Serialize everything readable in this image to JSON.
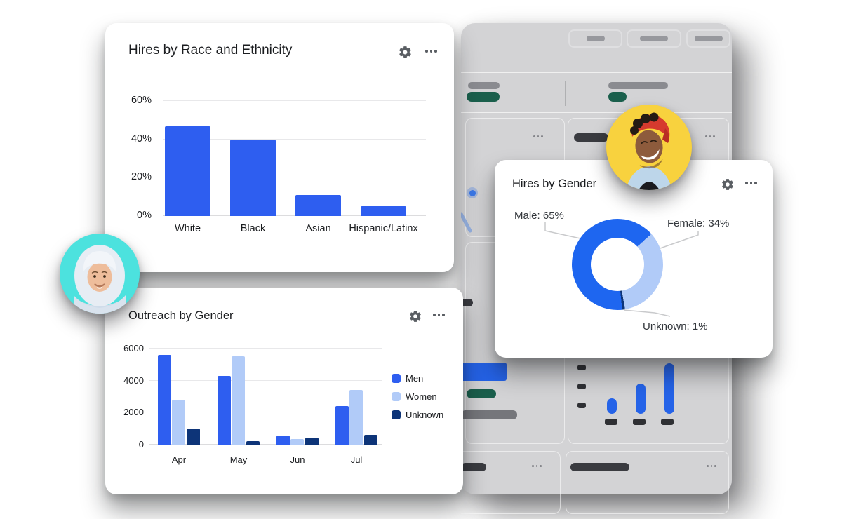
{
  "cards": {
    "race": {
      "title": "Hires by Race and Ethnicity"
    },
    "gender": {
      "title": "Hires by Gender"
    },
    "outreach": {
      "title": "Outreach by Gender"
    }
  },
  "icons": {
    "settings": "gear-icon",
    "more": "ellipsis-horizontal-icon"
  },
  "colors": {
    "primary_blue": "#2e5ef0",
    "donut_male_blue": "#1e66f0",
    "light_blue": "#b1cbf8",
    "navy": "#0d3478",
    "green_badge": "#1a5f4c",
    "panel_gray": "#d3d3d5",
    "card_white": "#ffffff"
  },
  "avatars": [
    {
      "name": "woman-hijab-avatar",
      "bg": "#4ce2de"
    },
    {
      "name": "man-beanie-avatar",
      "bg": "#f8d23e"
    }
  ],
  "chart_data": [
    {
      "name": "hires_by_race",
      "type": "bar",
      "title": "Hires by Race and Ethnicity",
      "categories": [
        "White",
        "Black",
        "Asian",
        "Hispanic/Latinx"
      ],
      "values": [
        47,
        40,
        11,
        5
      ],
      "unit": "%",
      "ylim": [
        0,
        60
      ],
      "yticks": [
        0,
        20,
        40,
        60
      ],
      "ytick_labels": [
        "0%",
        "20%",
        "40%",
        "60%"
      ],
      "bar_color": "#2e5ef0",
      "grid": true,
      "legend": null
    },
    {
      "name": "hires_by_gender",
      "type": "donut",
      "title": "Hires by Gender",
      "slices": [
        {
          "label": "Male",
          "value": 65,
          "color": "#1e66f0",
          "label_text": "Male: 65%"
        },
        {
          "label": "Female",
          "value": 34,
          "color": "#b1cbf8",
          "label_text": "Female: 34%"
        },
        {
          "label": "Unknown",
          "value": 1,
          "color": "#0d3478",
          "label_text": "Unknown: 1%"
        }
      ],
      "gradient": {
        "from_deg": 48,
        "order": [
          "Female",
          "Unknown",
          "Male"
        ]
      }
    },
    {
      "name": "outreach_by_gender",
      "type": "bar",
      "grouped": true,
      "title": "Outreach by Gender",
      "categories": [
        "Apr",
        "May",
        "Jun",
        "Jul"
      ],
      "series": [
        {
          "name": "Men",
          "color": "#2e5ef0",
          "values": [
            5600,
            4300,
            550,
            2400
          ]
        },
        {
          "name": "Women",
          "color": "#b1cbf8",
          "values": [
            2800,
            5500,
            350,
            3400
          ]
        },
        {
          "name": "Unknown",
          "color": "#0d3478",
          "values": [
            1000,
            200,
            430,
            620
          ]
        }
      ],
      "ylim": [
        0,
        6000
      ],
      "yticks": [
        0,
        2000,
        4000,
        6000
      ],
      "ytick_labels": [
        "0",
        "2000",
        "4000",
        "6000"
      ],
      "grid": true,
      "legend_position": "right"
    }
  ]
}
